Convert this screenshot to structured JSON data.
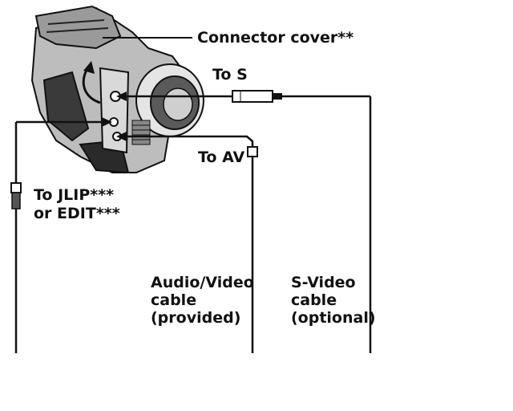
{
  "labels": {
    "connector_cover": "Connector cover**",
    "to_s": "To S",
    "to_av": "To AV",
    "to_jlip_line1": "To JLIP***",
    "to_jlip_line2": "or EDIT***",
    "av_cable_line1": "Audio/Video",
    "av_cable_line2": "cable",
    "av_cable_line3": "(provided)",
    "svideo_cable_line1": "S-Video",
    "svideo_cable_line2": "cable",
    "svideo_cable_line3": "(optional)"
  },
  "colors": {
    "ink": "#111111",
    "camera_body": "#cfcfcf",
    "camera_dark": "#4a4a4a",
    "background": "#ffffff"
  }
}
